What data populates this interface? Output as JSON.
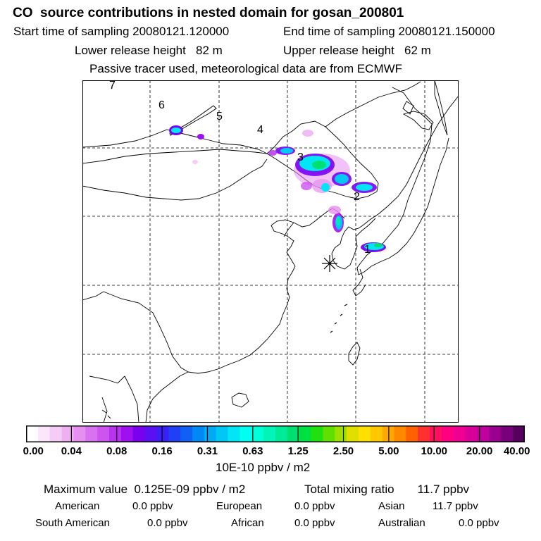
{
  "header": {
    "title": "CO  source contributions in nested domain for gosan_200801",
    "start_label": "Start time of sampling 20080121.120000",
    "end_label": "End time of sampling 20080121.150000",
    "lower_label": "Lower release height   82 m",
    "upper_label": "Upper release height   62 m",
    "note": "Passive tracer used, meteorological data are from ECMWF"
  },
  "map": {
    "trajectory_labels": [
      "1",
      "2",
      "3",
      "4",
      "5",
      "6",
      "7"
    ],
    "receptor": "gosan"
  },
  "colorbar": {
    "tick_labels": [
      "0.00",
      "0.04",
      "0.08",
      "0.16",
      "0.31",
      "0.63",
      "1.25",
      "2.50",
      "5.00",
      "10.00",
      "20.00",
      "40.00"
    ],
    "unit": "10E-10 ppbv / m2",
    "colors": [
      "#ffffff",
      "#fbe6fb",
      "#f5ccf5",
      "#eeb0f0",
      "#e68ff0",
      "#d872f0",
      "#cc55f0",
      "#b833f0",
      "#9e10f0",
      "#7a00f0",
      "#5a10f0",
      "#3a20f5",
      "#2040f5",
      "#1060f5",
      "#0088f5",
      "#00aaf5",
      "#00c8f5",
      "#00e6f5",
      "#00fff0",
      "#00ffd8",
      "#00f5b8",
      "#00eb98",
      "#00e070",
      "#00e040",
      "#20e010",
      "#60e000",
      "#a0e000",
      "#e0e000",
      "#ffe000",
      "#ffc800",
      "#ffa800",
      "#ff8800",
      "#ff6000",
      "#ff3030",
      "#ff1060",
      "#ff0080",
      "#f00090",
      "#d80098",
      "#c0009c",
      "#9a0090",
      "#78007a",
      "#580060"
    ]
  },
  "stats": {
    "max_label": "Maximum value  0.125E-09 ppbv / m2",
    "total_label": "Total mixing ratio       11.7 ppbv"
  },
  "regions": [
    {
      "name": "American",
      "value": "0.0 ppbv"
    },
    {
      "name": "European",
      "value": "0.0 ppbv"
    },
    {
      "name": "Asian",
      "value": "11.7 ppbv"
    },
    {
      "name": "South American",
      "value": "0.0 ppbv"
    },
    {
      "name": "African",
      "value": "0.0 ppbv"
    },
    {
      "name": "Australian",
      "value": "0.0 ppbv"
    }
  ]
}
